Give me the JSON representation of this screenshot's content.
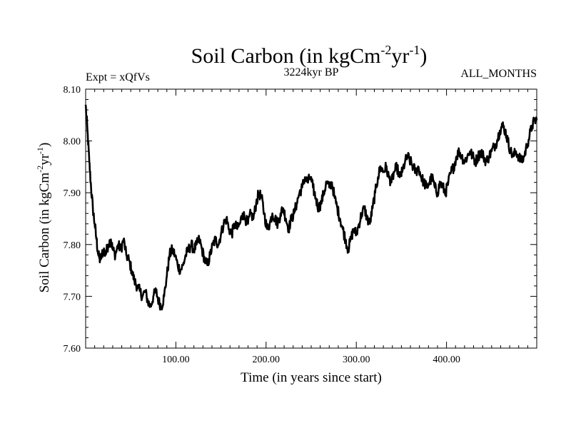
{
  "chart_data": {
    "type": "line",
    "title": {
      "main": "Soil Carbon (in kgCm",
      "sup1": "-2",
      "mid": "yr",
      "sup2": "-1",
      "end": ")"
    },
    "subtitle_left": "Expt = xQfVs",
    "subtitle_center": "3224kyr BP",
    "subtitle_right": "ALL_MONTHS",
    "xlabel": "Time (in years since start)",
    "ylabel": {
      "main": "Soil Carbon (in kgCm",
      "sup1": "-2",
      "mid": "yr",
      "sup2": "-1",
      "end": ")"
    },
    "xlim": [
      0,
      500
    ],
    "ylim": [
      7.6,
      8.1
    ],
    "x_ticks": [
      {
        "value": 100,
        "label": "100.00"
      },
      {
        "value": 200,
        "label": "200.00"
      },
      {
        "value": 300,
        "label": "300.00"
      },
      {
        "value": 400,
        "label": "400.00"
      }
    ],
    "y_ticks": [
      {
        "value": 7.6,
        "label": "7.60"
      },
      {
        "value": 7.7,
        "label": "7.70"
      },
      {
        "value": 7.8,
        "label": "7.80"
      },
      {
        "value": 7.9,
        "label": "7.90"
      },
      {
        "value": 8.0,
        "label": "8.00"
      },
      {
        "value": 8.1,
        "label": "8.10"
      }
    ],
    "grid": false,
    "series": [
      {
        "name": "Soil Carbon",
        "color": "#000000",
        "points": [
          [
            0,
            8.07
          ],
          [
            2,
            8.02
          ],
          [
            4,
            7.96
          ],
          [
            6,
            7.91
          ],
          [
            8,
            7.87
          ],
          [
            10,
            7.84
          ],
          [
            12,
            7.81
          ],
          [
            14,
            7.78
          ],
          [
            16,
            7.77
          ],
          [
            18,
            7.78
          ],
          [
            20,
            7.79
          ],
          [
            22,
            7.78
          ],
          [
            25,
            7.8
          ],
          [
            28,
            7.81
          ],
          [
            30,
            7.79
          ],
          [
            33,
            7.78
          ],
          [
            36,
            7.8
          ],
          [
            39,
            7.79
          ],
          [
            42,
            7.81
          ],
          [
            45,
            7.78
          ],
          [
            48,
            7.77
          ],
          [
            51,
            7.75
          ],
          [
            54,
            7.73
          ],
          [
            57,
            7.72
          ],
          [
            60,
            7.71
          ],
          [
            63,
            7.7
          ],
          [
            66,
            7.71
          ],
          [
            69,
            7.69
          ],
          [
            72,
            7.68
          ],
          [
            75,
            7.7
          ],
          [
            78,
            7.71
          ],
          [
            81,
            7.69
          ],
          [
            84,
            7.68
          ],
          [
            87,
            7.7
          ],
          [
            90,
            7.74
          ],
          [
            93,
            7.78
          ],
          [
            96,
            7.79
          ],
          [
            99,
            7.78
          ],
          [
            102,
            7.76
          ],
          [
            105,
            7.75
          ],
          [
            108,
            7.76
          ],
          [
            111,
            7.78
          ],
          [
            114,
            7.79
          ],
          [
            117,
            7.8
          ],
          [
            120,
            7.79
          ],
          [
            123,
            7.8
          ],
          [
            126,
            7.81
          ],
          [
            129,
            7.79
          ],
          [
            132,
            7.77
          ],
          [
            135,
            7.76
          ],
          [
            138,
            7.78
          ],
          [
            141,
            7.8
          ],
          [
            144,
            7.81
          ],
          [
            147,
            7.8
          ],
          [
            150,
            7.82
          ],
          [
            153,
            7.84
          ],
          [
            156,
            7.85
          ],
          [
            159,
            7.83
          ],
          [
            162,
            7.82
          ],
          [
            165,
            7.84
          ],
          [
            168,
            7.83
          ],
          [
            171,
            7.84
          ],
          [
            174,
            7.86
          ],
          [
            177,
            7.85
          ],
          [
            180,
            7.84
          ],
          [
            183,
            7.86
          ],
          [
            186,
            7.85
          ],
          [
            189,
            7.88
          ],
          [
            192,
            7.9
          ],
          [
            195,
            7.89
          ],
          [
            198,
            7.86
          ],
          [
            201,
            7.83
          ],
          [
            204,
            7.84
          ],
          [
            207,
            7.86
          ],
          [
            210,
            7.85
          ],
          [
            213,
            7.84
          ],
          [
            216,
            7.86
          ],
          [
            219,
            7.87
          ],
          [
            222,
            7.85
          ],
          [
            225,
            7.83
          ],
          [
            228,
            7.85
          ],
          [
            231,
            7.86
          ],
          [
            234,
            7.88
          ],
          [
            237,
            7.9
          ],
          [
            240,
            7.91
          ],
          [
            243,
            7.93
          ],
          [
            246,
            7.92
          ],
          [
            249,
            7.93
          ],
          [
            252,
            7.91
          ],
          [
            255,
            7.89
          ],
          [
            258,
            7.87
          ],
          [
            261,
            7.88
          ],
          [
            264,
            7.9
          ],
          [
            267,
            7.92
          ],
          [
            270,
            7.91
          ],
          [
            273,
            7.92
          ],
          [
            276,
            7.89
          ],
          [
            279,
            7.87
          ],
          [
            282,
            7.85
          ],
          [
            285,
            7.83
          ],
          [
            288,
            7.81
          ],
          [
            291,
            7.79
          ],
          [
            294,
            7.81
          ],
          [
            297,
            7.83
          ],
          [
            300,
            7.82
          ],
          [
            303,
            7.84
          ],
          [
            306,
            7.86
          ],
          [
            309,
            7.87
          ],
          [
            312,
            7.85
          ],
          [
            315,
            7.84
          ],
          [
            318,
            7.87
          ],
          [
            321,
            7.9
          ],
          [
            324,
            7.93
          ],
          [
            327,
            7.95
          ],
          [
            330,
            7.94
          ],
          [
            333,
            7.95
          ],
          [
            336,
            7.93
          ],
          [
            339,
            7.92
          ],
          [
            342,
            7.94
          ],
          [
            345,
            7.95
          ],
          [
            348,
            7.93
          ],
          [
            351,
            7.94
          ],
          [
            354,
            7.96
          ],
          [
            357,
            7.97
          ],
          [
            360,
            7.96
          ],
          [
            363,
            7.95
          ],
          [
            366,
            7.94
          ],
          [
            369,
            7.95
          ],
          [
            372,
            7.93
          ],
          [
            375,
            7.92
          ],
          [
            378,
            7.91
          ],
          [
            381,
            7.92
          ],
          [
            384,
            7.93
          ],
          [
            387,
            7.91
          ],
          [
            390,
            7.9
          ],
          [
            393,
            7.92
          ],
          [
            396,
            7.91
          ],
          [
            399,
            7.9
          ],
          [
            402,
            7.92
          ],
          [
            405,
            7.94
          ],
          [
            408,
            7.95
          ],
          [
            411,
            7.97
          ],
          [
            414,
            7.98
          ],
          [
            417,
            7.97
          ],
          [
            420,
            7.96
          ],
          [
            423,
            7.97
          ],
          [
            426,
            7.98
          ],
          [
            429,
            7.97
          ],
          [
            432,
            7.96
          ],
          [
            435,
            7.97
          ],
          [
            438,
            7.98
          ],
          [
            441,
            7.97
          ],
          [
            444,
            7.96
          ],
          [
            447,
            7.97
          ],
          [
            450,
            7.98
          ],
          [
            453,
            7.99
          ],
          [
            456,
            8.0
          ],
          [
            459,
            8.02
          ],
          [
            462,
            8.03
          ],
          [
            465,
            8.02
          ],
          [
            468,
            8.0
          ],
          [
            471,
            7.98
          ],
          [
            474,
            7.97
          ],
          [
            477,
            7.98
          ],
          [
            480,
            7.97
          ],
          [
            483,
            7.96
          ],
          [
            486,
            7.97
          ],
          [
            489,
            7.99
          ],
          [
            492,
            8.01
          ],
          [
            495,
            8.03
          ],
          [
            498,
            8.04
          ],
          [
            500,
            8.04
          ]
        ]
      }
    ]
  }
}
